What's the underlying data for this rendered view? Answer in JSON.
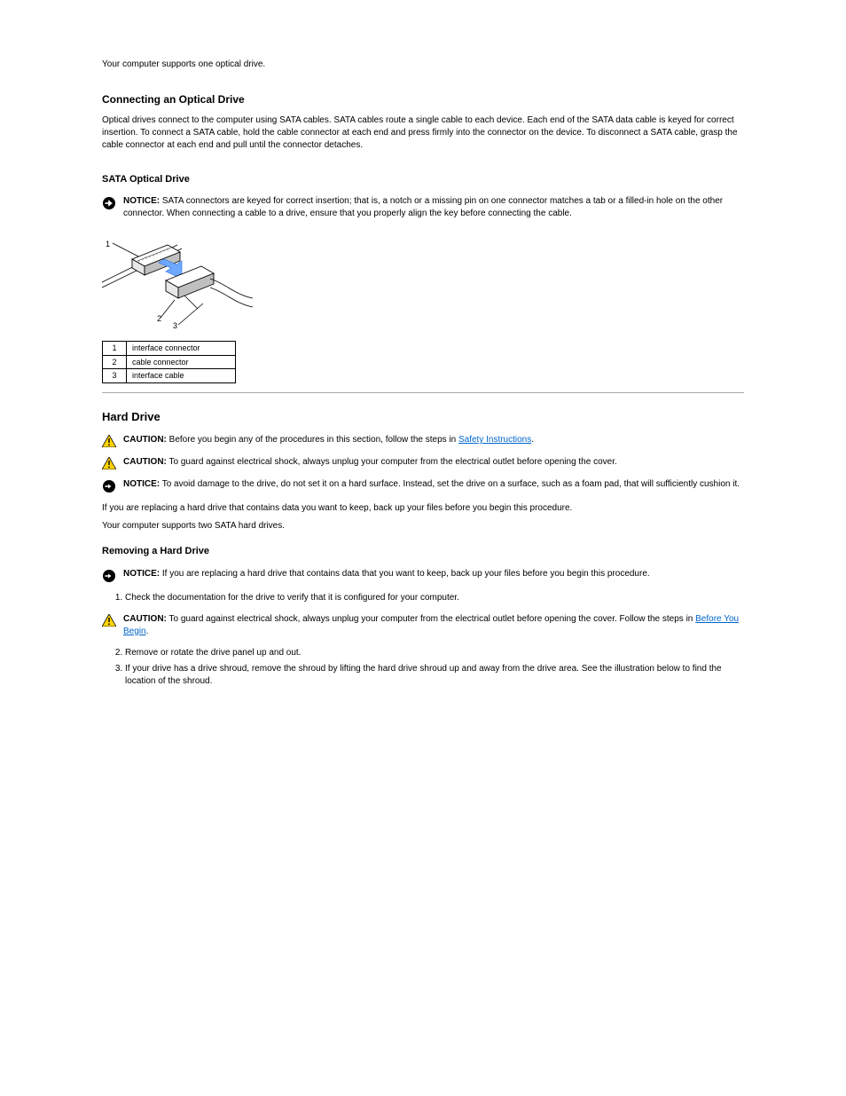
{
  "intro_para": "Your computer supports one optical drive.",
  "section1_title": "Connecting an Optical Drive",
  "section1_p1": "Optical drives connect to the computer using SATA cables. SATA cables route a single cable to each device. Each end of the SATA data cable is keyed for correct insertion. To connect a SATA cable, hold the cable connector at each end and press firmly into the connector on the device. To disconnect a SATA cable, grasp the cable connector at each end and pull until the connector detaches.",
  "section1_sub_title": "SATA Optical Drive",
  "notice1_label": "NOTICE:",
  "notice1_text": " SATA connectors are keyed for correct insertion; that is, a notch or a missing pin on one connector matches a tab or a filled-in hole on the other connector. When connecting a cable to a drive, ensure that you properly align the key before connecting the cable.",
  "figure": {
    "labels": [
      "1",
      "2",
      "3"
    ],
    "colors": {
      "arrow": "#6ea8ff",
      "stroke": "#000000",
      "shade": "#e8e8e8",
      "dark_shade": "#bfbfbf"
    }
  },
  "parts_table": {
    "rows": [
      {
        "num": "1",
        "label": "interface connector"
      },
      {
        "num": "2",
        "label": "cable connector"
      },
      {
        "num": "3",
        "label": "interface cable"
      }
    ]
  },
  "section2_title": "Hard Drive",
  "caution1_label": "CAUTION:",
  "caution1_text_before": " Before you begin any of the procedures in this section, follow the steps in ",
  "caution1_link": "Safety Instructions",
  "caution1_text_after": ".",
  "caution2_label": "CAUTION:",
  "caution2_text": " To guard against electrical shock, always unplug your computer from the electrical outlet before opening the cover.",
  "notice2_label": "NOTICE:",
  "notice2_text": " To avoid damage to the drive, do not set it on a hard surface. Instead, set the drive on a surface, such as a foam pad, that will sufficiently cushion it.",
  "section2_p1": "If you are replacing a hard drive that contains data you want to keep, back up your files before you begin this procedure.",
  "section2_p2": "Your computer supports two SATA hard drives.",
  "section3_title": "Removing a Hard Drive",
  "notice3_label": "NOTICE:",
  "notice3_text": " If you are replacing a hard drive that contains data that you want to keep, back up your files before you begin this procedure.",
  "step1": "Check the documentation for the drive to verify that it is configured for your computer.",
  "caution3_label": "CAUTION:",
  "caution3_text_before": " To guard against electrical shock, always unplug your computer from the electrical outlet before opening the cover. Follow the steps in ",
  "caution3_link": "Before You Begin",
  "caution3_text_after": ".",
  "step2": "Remove or rotate the drive panel up and out.",
  "step3": "If your drive has a drive shroud, remove the shroud by lifting the hard drive shroud up and away from the drive area. See the illustration below to find the location of the shroud."
}
